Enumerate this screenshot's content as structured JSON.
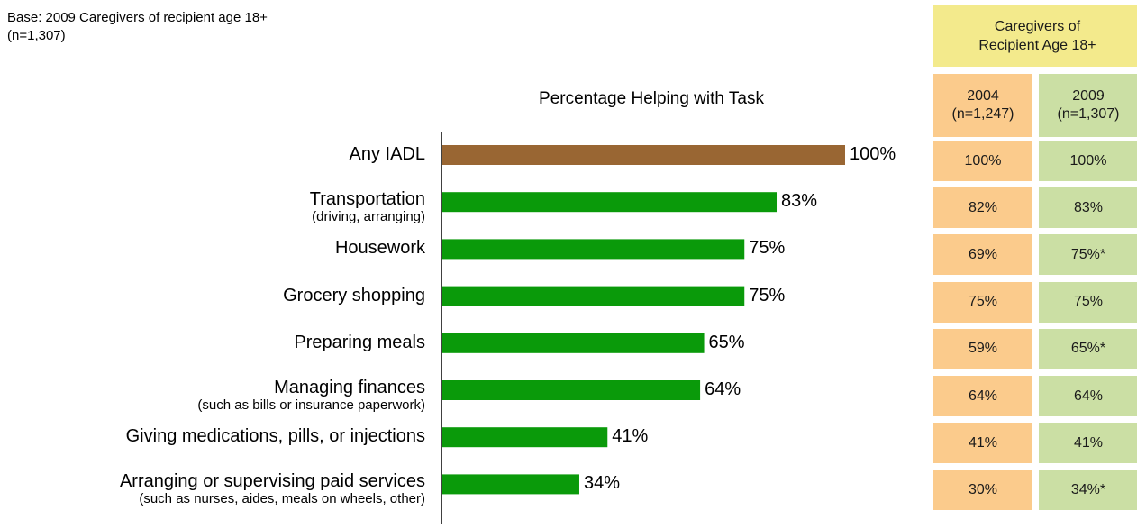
{
  "base_note": [
    "Base:  2009 Caregivers of recipient age 18+",
    "(n=1,307)"
  ],
  "chart_data": {
    "type": "bar",
    "orientation": "horizontal",
    "title": "Percentage Helping with Task",
    "categories": [
      {
        "label": "Any IADL",
        "sublabel": ""
      },
      {
        "label": "Transportation",
        "sublabel": "(driving, arranging)"
      },
      {
        "label": "Housework",
        "sublabel": ""
      },
      {
        "label": "Grocery shopping",
        "sublabel": ""
      },
      {
        "label": "Preparing meals",
        "sublabel": ""
      },
      {
        "label": "Managing finances",
        "sublabel": "(such as bills or insurance paperwork)"
      },
      {
        "label": "Giving medications, pills, or injections",
        "sublabel": ""
      },
      {
        "label": "Arranging or supervising paid services",
        "sublabel": "(such as nurses, aides, meals on wheels, other)"
      }
    ],
    "values": [
      100,
      83,
      75,
      75,
      65,
      64,
      41,
      34
    ],
    "data_labels": [
      "100%",
      "83%",
      "75%",
      "75%",
      "65%",
      "64%",
      "41%",
      "34%"
    ],
    "xlim": [
      0,
      100
    ],
    "colors": {
      "highlight": "#996633",
      "default": "#0a9a0a"
    },
    "highlight_index": 0,
    "grid": false
  },
  "table": {
    "header": [
      "Caregivers of",
      "Recipient Age 18+"
    ],
    "columns": [
      {
        "year": "2004",
        "n": "(n=1,247)",
        "color": "#fbcb8c",
        "values": [
          "100%",
          "82%",
          "69%",
          "75%",
          "59%",
          "64%",
          "41%",
          "30%"
        ]
      },
      {
        "year": "2009",
        "n": "(n=1,307)",
        "color": "#cbdfa4",
        "values": [
          "100%",
          "83%",
          "75%*",
          "75%",
          "65%*",
          "64%",
          "41%",
          "34%*"
        ]
      }
    ]
  }
}
